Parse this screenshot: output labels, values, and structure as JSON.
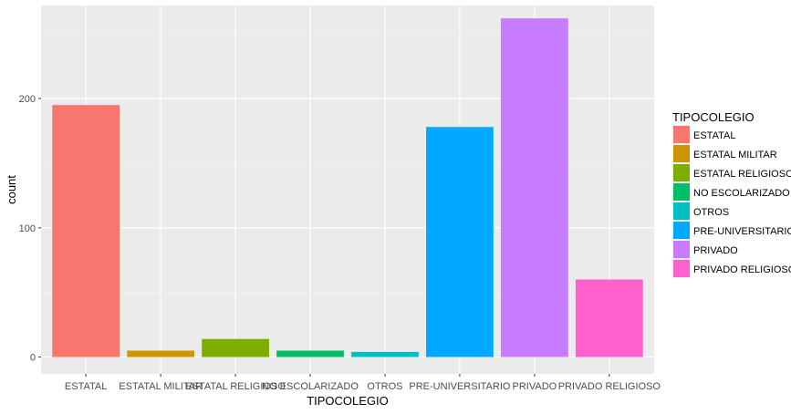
{
  "chart_data": {
    "type": "bar",
    "title": "",
    "xlabel": "TIPOCOLEGIO",
    "ylabel": "count",
    "ylim": [
      -13,
      272
    ],
    "yticks": [
      0,
      100,
      200
    ],
    "grid": true,
    "legend_position": "right",
    "categories": [
      "ESTATAL",
      "ESTATAL MILITAR",
      "ESTATAL RELIGIOSO",
      "NO ESCOLARIZADO",
      "OTROS",
      "PRE-UNIVERSITARIO",
      "PRIVADO",
      "PRIVADO RELIGIOSO"
    ],
    "values": [
      195,
      5,
      14,
      5,
      4,
      178,
      262,
      60
    ],
    "colors": [
      "#F8766D",
      "#CD9600",
      "#7CAE00",
      "#00BE67",
      "#00BFC4",
      "#00A9FF",
      "#C77CFF",
      "#FF61CC"
    ],
    "legend": {
      "title": "TIPOCOLEGIO",
      "entries": [
        "ESTATAL",
        "ESTATAL MILITAR",
        "ESTATAL RELIGIOSO",
        "NO ESCOLARIZADO",
        "OTROS",
        "PRE-UNIVERSITARIO",
        "PRIVADO",
        "PRIVADO RELIGIOSO"
      ]
    }
  }
}
